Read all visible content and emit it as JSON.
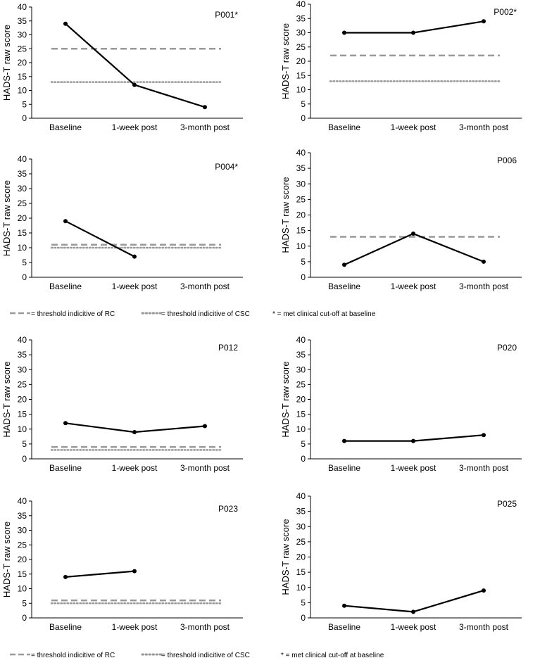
{
  "chart_data": [
    {
      "type": "line",
      "id": "P001*",
      "categories": [
        "Baseline",
        "1-week post",
        "3-month post"
      ],
      "values": [
        34,
        12,
        4
      ],
      "rc": 25,
      "csc": 13,
      "ylabel": "HADS-T raw score",
      "ylim": [
        0,
        40
      ],
      "yticks": [
        0,
        5,
        10,
        15,
        20,
        25,
        30,
        35,
        40
      ]
    },
    {
      "type": "line",
      "id": "P002*",
      "categories": [
        "Baseline",
        "1-week post",
        "3-month post"
      ],
      "values": [
        30,
        30,
        34
      ],
      "rc": 22,
      "csc": 13,
      "ylabel": "HADS-T raw score",
      "ylim": [
        0,
        40
      ],
      "yticks": [
        0,
        5,
        10,
        15,
        20,
        25,
        30,
        35,
        40
      ]
    },
    {
      "type": "line",
      "id": "P004*",
      "categories": [
        "Baseline",
        "1-week post",
        "3-month post"
      ],
      "values": [
        19,
        7,
        null
      ],
      "rc": 11,
      "csc": 10,
      "ylabel": "HADS-T raw score",
      "ylim": [
        0,
        40
      ],
      "yticks": [
        0,
        5,
        10,
        15,
        20,
        25,
        30,
        35,
        40
      ]
    },
    {
      "type": "line",
      "id": "P006",
      "categories": [
        "Baseline",
        "1-week post",
        "3-month post"
      ],
      "values": [
        4,
        14,
        5
      ],
      "rc": 13,
      "csc": null,
      "ylabel": "HADS-T raw score",
      "ylim": [
        0,
        40
      ],
      "yticks": [
        0,
        5,
        10,
        15,
        20,
        25,
        30,
        35,
        40
      ]
    },
    {
      "type": "line",
      "id": "P012",
      "categories": [
        "Baseline",
        "1-week post",
        "3-month post"
      ],
      "values": [
        12,
        9,
        11
      ],
      "rc": 4,
      "csc": 3,
      "ylabel": "HADS-T raw score",
      "ylim": [
        0,
        40
      ],
      "yticks": [
        0,
        5,
        10,
        15,
        20,
        25,
        30,
        35,
        40
      ]
    },
    {
      "type": "line",
      "id": "P020",
      "categories": [
        "Baseline",
        "1-week post",
        "3-month post"
      ],
      "values": [
        6,
        6,
        8
      ],
      "rc": null,
      "csc": null,
      "ylabel": "HADS-T raw score",
      "ylim": [
        0,
        40
      ],
      "yticks": [
        0,
        5,
        10,
        15,
        20,
        25,
        30,
        35,
        40
      ]
    },
    {
      "type": "line",
      "id": "P023",
      "categories": [
        "Baseline",
        "1-week post",
        "3-month post"
      ],
      "values": [
        14,
        16,
        null
      ],
      "rc": 6,
      "csc": 5,
      "ylabel": "HADS-T raw score",
      "ylim": [
        0,
        40
      ],
      "yticks": [
        0,
        5,
        10,
        15,
        20,
        25,
        30,
        35,
        40
      ]
    },
    {
      "type": "line",
      "id": "P025",
      "categories": [
        "Baseline",
        "1-week post",
        "3-month post"
      ],
      "values": [
        4,
        2,
        9
      ],
      "rc": null,
      "csc": null,
      "ylabel": "HADS-T raw score",
      "ylim": [
        0,
        40
      ],
      "yticks": [
        0,
        5,
        10,
        15,
        20,
        25,
        30,
        35,
        40
      ]
    }
  ],
  "legend": {
    "rc": "= threshold indicitive of RC",
    "csc": "= threshold indicitive of CSC",
    "star": "* = met clinical cut-off at baseline"
  },
  "colors": {
    "line": "#000000",
    "rc": "#999999",
    "csc": "#999999",
    "text": "#000000"
  }
}
